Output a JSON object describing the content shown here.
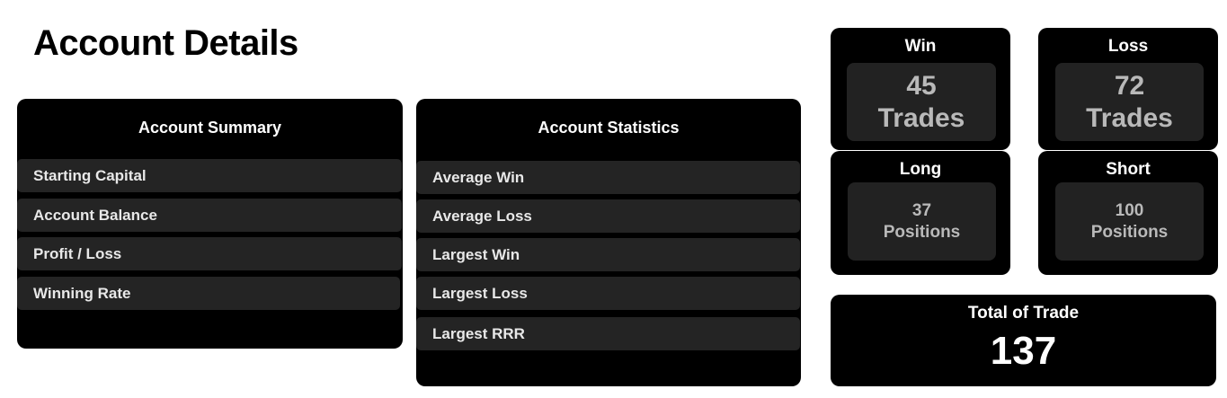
{
  "page": {
    "title": "Account Details"
  },
  "account_summary": {
    "title": "Account Summary",
    "rows": [
      "Starting Capital",
      "Account Balance",
      "Profit / Loss",
      "Winning Rate"
    ]
  },
  "account_statistics": {
    "title": "Account Statistics",
    "rows": [
      "Average Win",
      "Average Loss",
      "Largest Win",
      "Largest Loss",
      "Largest RRR"
    ]
  },
  "stats": {
    "win": {
      "title": "Win",
      "value": "45",
      "unit": "Trades"
    },
    "loss": {
      "title": "Loss",
      "value": "72",
      "unit": "Trades"
    },
    "long": {
      "title": "Long",
      "value": "37",
      "unit": "Positions"
    },
    "short": {
      "title": "Short",
      "value": "100",
      "unit": "Positions"
    }
  },
  "total": {
    "title": "Total of Trade",
    "value": "137"
  },
  "colors": {
    "panel": "#000000",
    "row": "#242424",
    "inner": "#222222",
    "text_light": "#ffffff",
    "text_muted": "#b9b9b9"
  }
}
